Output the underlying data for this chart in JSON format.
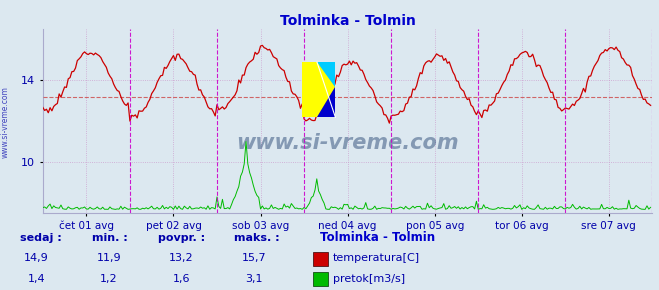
{
  "title": "Tolminka - Tolmin",
  "title_color": "#0000cc",
  "bg_color": "#dce8f0",
  "plot_bg_color": "#dce8f0",
  "fig_bg_color": "#dce8f0",
  "x_labels": [
    "čet 01 avg",
    "pet 02 avg",
    "sob 03 avg",
    "ned 04 avg",
    "pon 05 avg",
    "tor 06 avg",
    "sre 07 avg"
  ],
  "y_ticks_temp": [
    10,
    14
  ],
  "temp_min": 11.9,
  "temp_max": 15.7,
  "temp_avg": 13.2,
  "temp_cur": 14.9,
  "flow_min": 1.2,
  "flow_max": 3.1,
  "flow_avg": 1.6,
  "flow_cur": 1.4,
  "temp_color": "#cc0000",
  "flow_color": "#00bb00",
  "avg_line_color": "#cc4444",
  "vline_color": "#cc00cc",
  "grid_color": "#cc99cc",
  "watermark": "www.si-vreme.com",
  "watermark_color": "#1a3a6a",
  "tick_color": "#0000aa",
  "num_points": 336,
  "ylim_min": 7.5,
  "ylim_max": 16.5,
  "flow_display_max": 3.5,
  "flow_display_base": 7.5
}
